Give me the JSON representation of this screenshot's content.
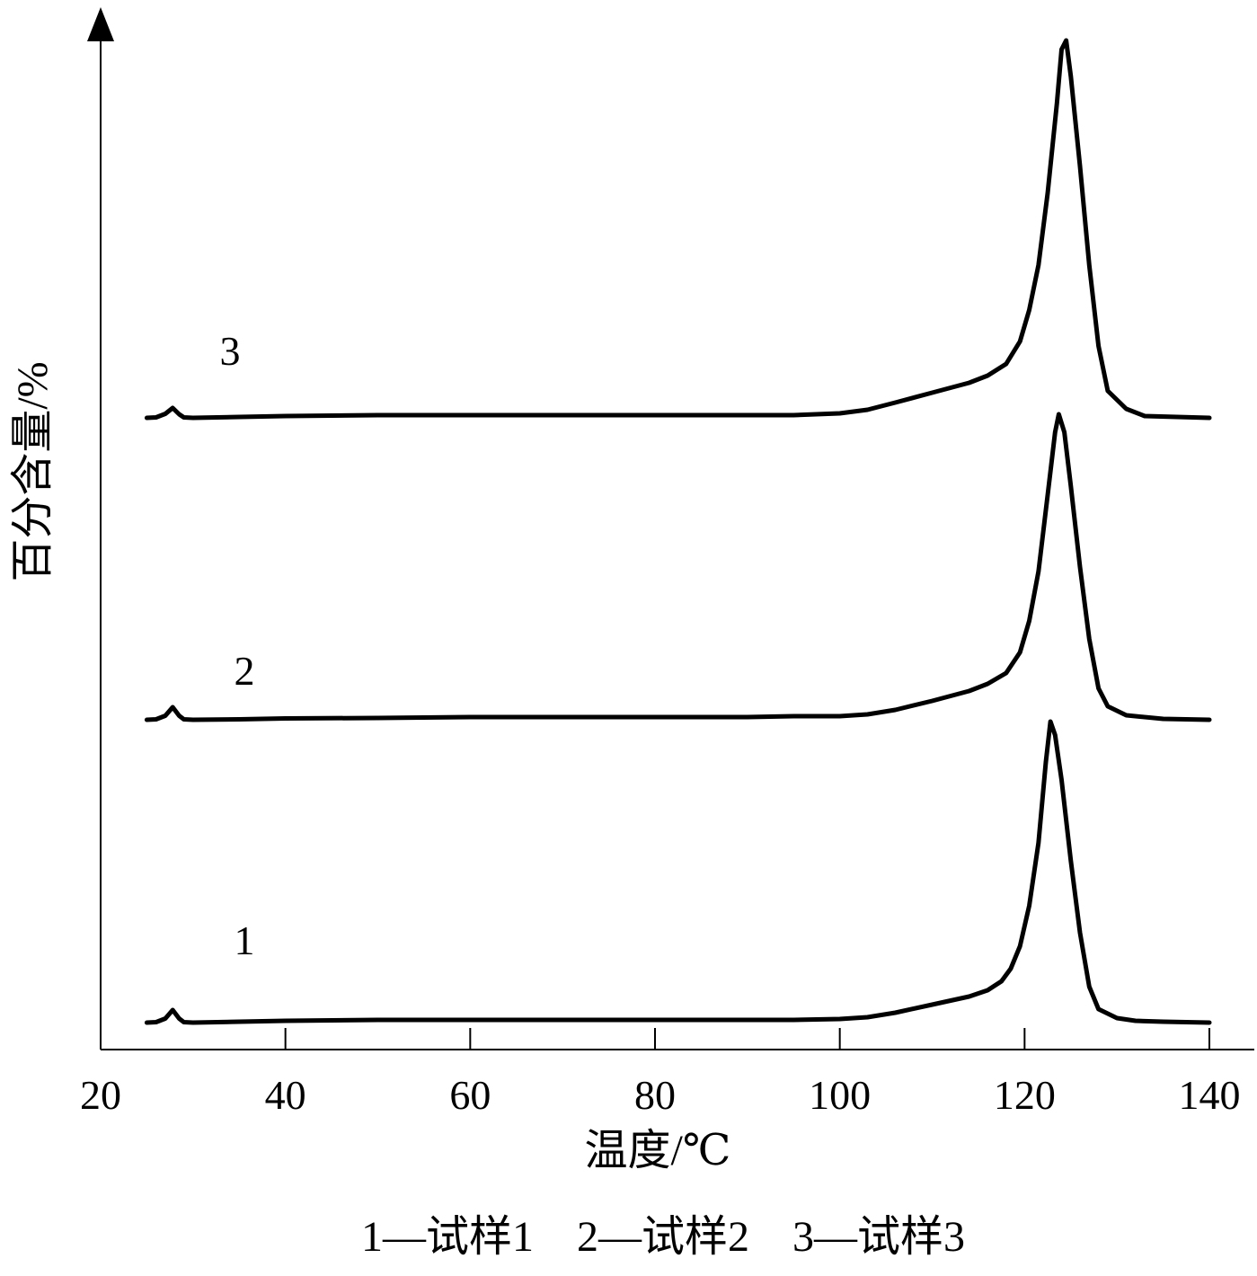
{
  "chart_data": {
    "type": "line",
    "xlabel": "温度/℃",
    "ylabel": "百分含量/%",
    "xlim": [
      20,
      140
    ],
    "x_ticks": [
      20,
      40,
      60,
      80,
      100,
      120,
      140
    ],
    "y_ticks": [],
    "grid": false,
    "legend_text": "1—试样1　2—试样2　3—试样3",
    "series": [
      {
        "name": "1",
        "label": "1",
        "points": [
          [
            25,
            0
          ],
          [
            26,
            0.5
          ],
          [
            27,
            4.5
          ],
          [
            27.8,
            14
          ],
          [
            28.5,
            4.5
          ],
          [
            29,
            0.5
          ],
          [
            30,
            0
          ],
          [
            35,
            1
          ],
          [
            40,
            2
          ],
          [
            50,
            3
          ],
          [
            60,
            3
          ],
          [
            70,
            3
          ],
          [
            80,
            3
          ],
          [
            90,
            3
          ],
          [
            95,
            3
          ],
          [
            100,
            4
          ],
          [
            103,
            6
          ],
          [
            106,
            11
          ],
          [
            110,
            20
          ],
          [
            114,
            29
          ],
          [
            116,
            36
          ],
          [
            117.5,
            46
          ],
          [
            118.5,
            60
          ],
          [
            119.5,
            85
          ],
          [
            120.5,
            130
          ],
          [
            121.5,
            200
          ],
          [
            122.3,
            290
          ],
          [
            122.8,
            335
          ],
          [
            123.3,
            320
          ],
          [
            124,
            270
          ],
          [
            125,
            180
          ],
          [
            126,
            100
          ],
          [
            127,
            40
          ],
          [
            128,
            15
          ],
          [
            130,
            5
          ],
          [
            132,
            2
          ],
          [
            135,
            1
          ],
          [
            140,
            0
          ]
        ]
      },
      {
        "name": "2",
        "label": "2",
        "points": [
          [
            25,
            0
          ],
          [
            26,
            0.5
          ],
          [
            27,
            4.5
          ],
          [
            27.8,
            14
          ],
          [
            28.5,
            4.5
          ],
          [
            29,
            0.5
          ],
          [
            30,
            0
          ],
          [
            35,
            0.5
          ],
          [
            40,
            1.5
          ],
          [
            50,
            2
          ],
          [
            60,
            3
          ],
          [
            70,
            3
          ],
          [
            80,
            3
          ],
          [
            90,
            3
          ],
          [
            95,
            4
          ],
          [
            100,
            4
          ],
          [
            103,
            6
          ],
          [
            106,
            11
          ],
          [
            110,
            21
          ],
          [
            114,
            32
          ],
          [
            116,
            40
          ],
          [
            118,
            52
          ],
          [
            119.5,
            75
          ],
          [
            120.5,
            110
          ],
          [
            121.5,
            165
          ],
          [
            122.5,
            250
          ],
          [
            123.3,
            320
          ],
          [
            123.7,
            340
          ],
          [
            124.3,
            320
          ],
          [
            125,
            260
          ],
          [
            126,
            170
          ],
          [
            127,
            90
          ],
          [
            128,
            35
          ],
          [
            129,
            15
          ],
          [
            131,
            5
          ],
          [
            135,
            1
          ],
          [
            140,
            0
          ]
        ]
      },
      {
        "name": "3",
        "label": "3",
        "points": [
          [
            25,
            0
          ],
          [
            26,
            0.5
          ],
          [
            27,
            4.5
          ],
          [
            27.8,
            11
          ],
          [
            28.5,
            4
          ],
          [
            29,
            0.5
          ],
          [
            30,
            0
          ],
          [
            35,
            1
          ],
          [
            40,
            2
          ],
          [
            50,
            3
          ],
          [
            60,
            3
          ],
          [
            70,
            3
          ],
          [
            80,
            3
          ],
          [
            90,
            3
          ],
          [
            95,
            3
          ],
          [
            100,
            5
          ],
          [
            103,
            9
          ],
          [
            106,
            17
          ],
          [
            110,
            28
          ],
          [
            114,
            39
          ],
          [
            116,
            47
          ],
          [
            118,
            60
          ],
          [
            119.5,
            85
          ],
          [
            120.5,
            120
          ],
          [
            121.5,
            170
          ],
          [
            122.5,
            250
          ],
          [
            123.5,
            350
          ],
          [
            124,
            410
          ],
          [
            124.5,
            420
          ],
          [
            125,
            380
          ],
          [
            126,
            280
          ],
          [
            127,
            170
          ],
          [
            128,
            80
          ],
          [
            129,
            30
          ],
          [
            131,
            10
          ],
          [
            133,
            2
          ],
          [
            140,
            0
          ]
        ]
      }
    ]
  }
}
